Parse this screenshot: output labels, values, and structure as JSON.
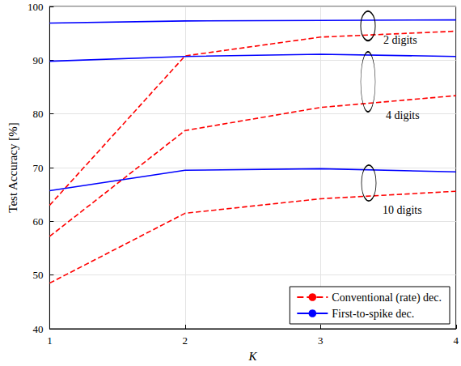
{
  "chart_data": {
    "type": "line",
    "x_label": "K",
    "y_label": "Test Accuracy [%]",
    "x": [
      1,
      2,
      3,
      4
    ],
    "xlim": [
      1,
      4
    ],
    "xticks": [
      1,
      2,
      3,
      4
    ],
    "ylim": [
      40,
      100
    ],
    "yticks": [
      40,
      50,
      60,
      70,
      80,
      90,
      100
    ],
    "grid": true,
    "legend": "lower right",
    "annotations": [
      "2 digits",
      "4 digits",
      "10 digits"
    ],
    "series": [
      {
        "name": "Conventional (rate) dec.",
        "color": "#ff0000",
        "line_style": "dashed",
        "values": [
          63.0,
          90.8,
          94.3,
          95.4
        ]
      },
      {
        "name": "Conventional (rate) dec.",
        "color": "#ff0000",
        "line_style": "dashed",
        "values": [
          57.2,
          76.9,
          81.2,
          83.4
        ]
      },
      {
        "name": "Conventional (rate) dec.",
        "color": "#ff0000",
        "line_style": "dashed",
        "values": [
          48.5,
          61.5,
          64.2,
          65.6
        ]
      },
      {
        "name": "First-to-spike dec.",
        "color": "#0000ff",
        "line_style": "solid",
        "values": [
          96.9,
          97.3,
          97.4,
          97.5
        ]
      },
      {
        "name": "First-to-spike dec.",
        "color": "#0000ff",
        "line_style": "solid",
        "values": [
          89.8,
          90.7,
          91.1,
          90.7
        ]
      },
      {
        "name": "First-to-spike dec.",
        "color": "#0000ff",
        "line_style": "solid",
        "values": [
          65.7,
          69.5,
          69.8,
          69.2
        ]
      }
    ]
  }
}
